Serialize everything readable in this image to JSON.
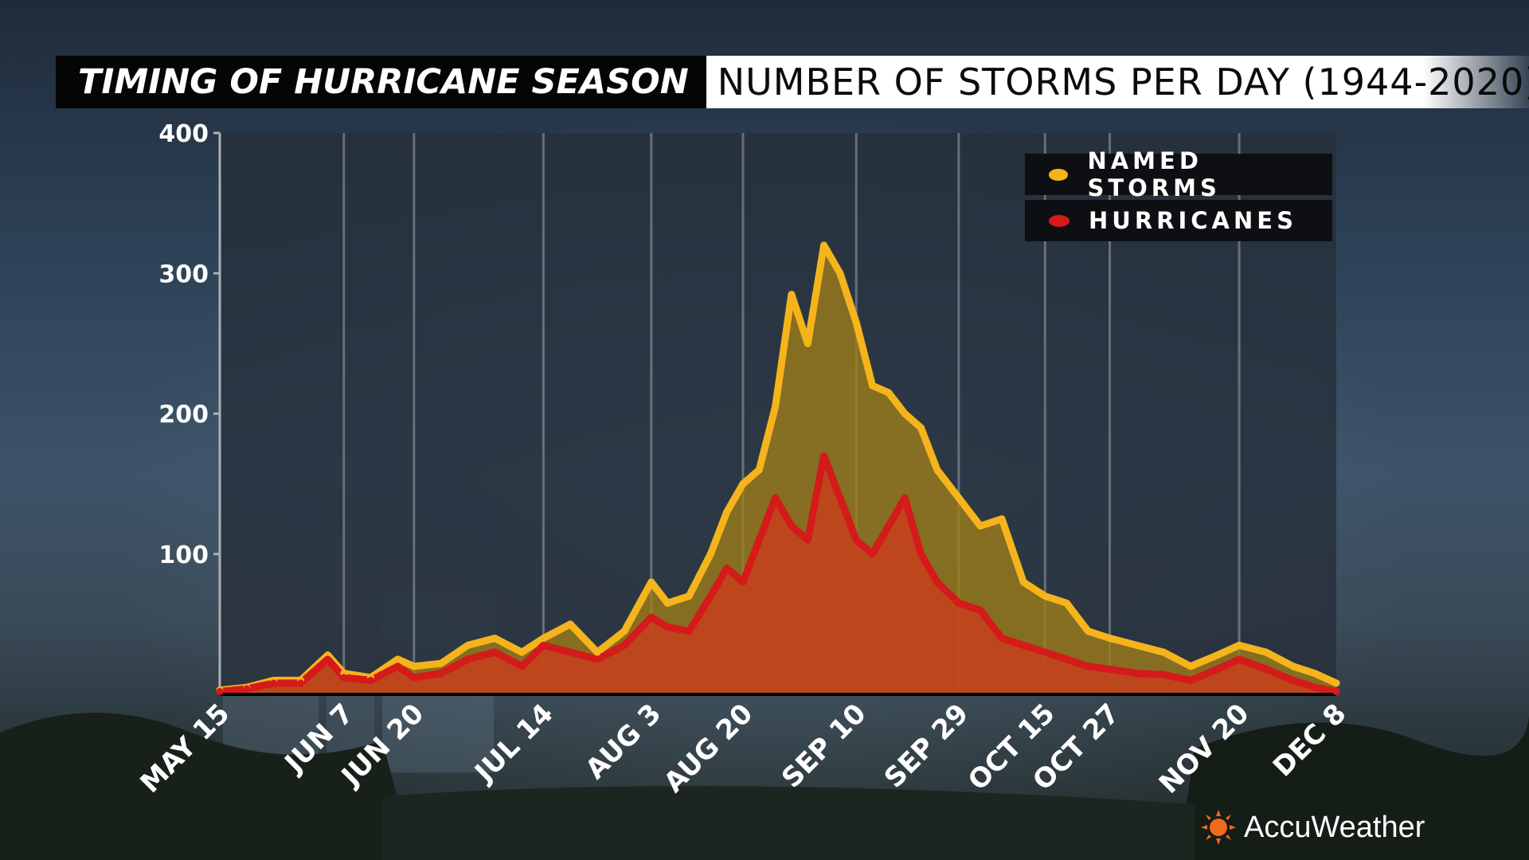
{
  "title": {
    "left": "TIMING OF HURRICANE SEASON",
    "right": "NUMBER OF STORMS PER DAY (1944-2020)"
  },
  "legend": {
    "named_storms": "NAMED STORMS",
    "hurricanes": "HURRICANES"
  },
  "logo": {
    "text": "AccuWeather",
    "icon": "sun-icon"
  },
  "colors": {
    "named_storms_line": "#f5b41c",
    "named_storms_fill": "#a07d18",
    "hurricanes_line": "#d41a1a",
    "hurricanes_fill": "#c8401c",
    "plot_background": "#262f3a",
    "gridline": "#9aa1a8",
    "title_left_bg": "#050505",
    "title_right_bg": "#ffffff"
  },
  "chart_data": {
    "type": "area",
    "title": "NUMBER OF STORMS PER DAY (1944-2020)",
    "xlabel": "",
    "ylabel": "",
    "ylim": [
      0,
      400
    ],
    "yticks": [
      100,
      200,
      300,
      400
    ],
    "grid": "vertical",
    "legend_position": "top-right",
    "x_ticks": [
      "MAY 15",
      "JUN 7",
      "JUN 20",
      "JUL 14",
      "AUG 3",
      "AUG 20",
      "SEP 10",
      "SEP 29",
      "OCT 15",
      "OCT 27",
      "NOV 20",
      "DEC 8"
    ],
    "x_gridlines": [
      "JUN 7",
      "JUN 20",
      "JUL 14",
      "AUG 3",
      "AUG 20",
      "SEP 10",
      "SEP 29",
      "OCT 15",
      "OCT 27",
      "NOV 20"
    ],
    "x": [
      "May 15",
      "May 20",
      "May 25",
      "May 30",
      "Jun 4",
      "Jun 7",
      "Jun 12",
      "Jun 17",
      "Jun 20",
      "Jun 25",
      "Jun 30",
      "Jul 5",
      "Jul 10",
      "Jul 14",
      "Jul 19",
      "Jul 24",
      "Jul 29",
      "Aug 3",
      "Aug 6",
      "Aug 10",
      "Aug 14",
      "Aug 17",
      "Aug 20",
      "Aug 23",
      "Aug 26",
      "Aug 29",
      "Sep 1",
      "Sep 4",
      "Sep 7",
      "Sep 10",
      "Sep 13",
      "Sep 16",
      "Sep 19",
      "Sep 22",
      "Sep 25",
      "Sep 29",
      "Oct 3",
      "Oct 7",
      "Oct 11",
      "Oct 15",
      "Oct 19",
      "Oct 23",
      "Oct 27",
      "Nov 1",
      "Nov 6",
      "Nov 11",
      "Nov 16",
      "Nov 20",
      "Nov 25",
      "Nov 30",
      "Dec 4",
      "Dec 8"
    ],
    "series": [
      {
        "name": "NAMED STORMS",
        "values": [
          3,
          5,
          10,
          10,
          28,
          15,
          12,
          25,
          20,
          22,
          35,
          40,
          30,
          40,
          50,
          30,
          45,
          80,
          65,
          70,
          100,
          130,
          150,
          160,
          205,
          285,
          250,
          320,
          300,
          265,
          220,
          215,
          200,
          190,
          160,
          140,
          120,
          125,
          80,
          70,
          65,
          45,
          40,
          35,
          30,
          20,
          28,
          35,
          30,
          20,
          15,
          8
        ]
      },
      {
        "name": "HURRICANES",
        "values": [
          2,
          4,
          8,
          8,
          25,
          12,
          10,
          20,
          12,
          15,
          25,
          30,
          20,
          35,
          30,
          25,
          35,
          55,
          48,
          45,
          70,
          90,
          80,
          110,
          140,
          120,
          110,
          170,
          140,
          110,
          100,
          120,
          140,
          100,
          80,
          65,
          60,
          40,
          35,
          30,
          25,
          20,
          18,
          15,
          14,
          10,
          18,
          25,
          18,
          10,
          5,
          2
        ]
      }
    ]
  }
}
